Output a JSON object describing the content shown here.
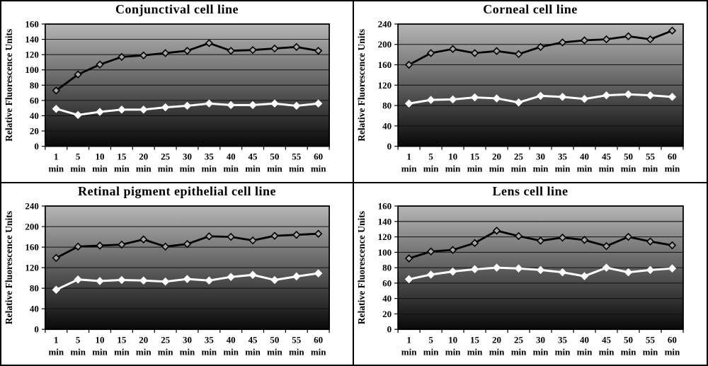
{
  "figure": {
    "background_color": "#ffffff",
    "border_color": "#000000",
    "plot_background_gradient_top": "#b6b6b6",
    "plot_background_gradient_bottom": "#080808"
  },
  "chart_data": [
    {
      "type": "line",
      "title": "Conjunctival cell line",
      "ylabel": "Relative Fluorescence Units",
      "xlabel": "",
      "ylim": [
        0,
        160
      ],
      "ytick_step": 20,
      "grid": true,
      "legend": "none",
      "categories": [
        "1",
        "5",
        "10",
        "15",
        "20",
        "25",
        "30",
        "35",
        "40",
        "45",
        "50",
        "55",
        "60"
      ],
      "category_unit": "min",
      "series": [
        {
          "name": "black-open-diamond-series",
          "color": "#000000",
          "marker": "open-diamond",
          "values": [
            73,
            94,
            107,
            117,
            119,
            122,
            125,
            135,
            125,
            126,
            128,
            130,
            125
          ]
        },
        {
          "name": "white-solid-diamond-series",
          "color": "#ffffff",
          "marker": "diamond",
          "values": [
            49,
            41,
            45,
            48,
            48,
            51,
            53,
            56,
            54,
            54,
            56,
            53,
            56
          ]
        }
      ]
    },
    {
      "type": "line",
      "title": "Corneal cell line",
      "ylabel": "Relative Fluorescence Units",
      "xlabel": "",
      "ylim": [
        0,
        240
      ],
      "ytick_step": 40,
      "grid": true,
      "legend": "none",
      "categories": [
        "1",
        "5",
        "10",
        "15",
        "20",
        "25",
        "30",
        "35",
        "40",
        "45",
        "50",
        "55",
        "60"
      ],
      "category_unit": "min",
      "series": [
        {
          "name": "black-open-diamond-series",
          "color": "#000000",
          "marker": "open-diamond",
          "values": [
            160,
            183,
            191,
            183,
            187,
            181,
            195,
            204,
            208,
            210,
            216,
            210,
            227
          ]
        },
        {
          "name": "white-solid-diamond-series",
          "color": "#ffffff",
          "marker": "diamond",
          "values": [
            84,
            91,
            92,
            96,
            94,
            86,
            99,
            97,
            93,
            100,
            102,
            100,
            97
          ]
        }
      ]
    },
    {
      "type": "line",
      "title": "Retinal pigment epithelial cell line",
      "ylabel": "Relative Fluorescence Units",
      "xlabel": "",
      "ylim": [
        0,
        240
      ],
      "ytick_step": 40,
      "grid": true,
      "legend": "none",
      "categories": [
        "1",
        "5",
        "10",
        "15",
        "20",
        "25",
        "30",
        "35",
        "40",
        "45",
        "50",
        "55",
        "60"
      ],
      "category_unit": "min",
      "series": [
        {
          "name": "black-open-diamond-series",
          "color": "#000000",
          "marker": "open-diamond",
          "values": [
            139,
            161,
            163,
            165,
            175,
            161,
            166,
            181,
            180,
            173,
            182,
            184,
            186
          ]
        },
        {
          "name": "white-solid-diamond-series",
          "color": "#ffffff",
          "marker": "diamond",
          "values": [
            77,
            97,
            94,
            96,
            95,
            93,
            98,
            95,
            102,
            106,
            96,
            103,
            109
          ]
        }
      ]
    },
    {
      "type": "line",
      "title": "Lens cell line",
      "ylabel": "Relative Fluorescence Units",
      "xlabel": "",
      "ylim": [
        0,
        160
      ],
      "ytick_step": 20,
      "grid": true,
      "legend": "none",
      "categories": [
        "1",
        "5",
        "10",
        "15",
        "20",
        "25",
        "30",
        "35",
        "40",
        "45",
        "50",
        "55",
        "60"
      ],
      "category_unit": "min",
      "series": [
        {
          "name": "black-open-diamond-series",
          "color": "#000000",
          "marker": "open-diamond",
          "values": [
            92,
            101,
            103,
            112,
            128,
            121,
            115,
            119,
            116,
            108,
            120,
            114,
            109
          ]
        },
        {
          "name": "white-solid-diamond-series",
          "color": "#ffffff",
          "marker": "diamond",
          "values": [
            65,
            71,
            75,
            78,
            80,
            79,
            77,
            74,
            69,
            80,
            74,
            77,
            79
          ]
        }
      ]
    }
  ]
}
